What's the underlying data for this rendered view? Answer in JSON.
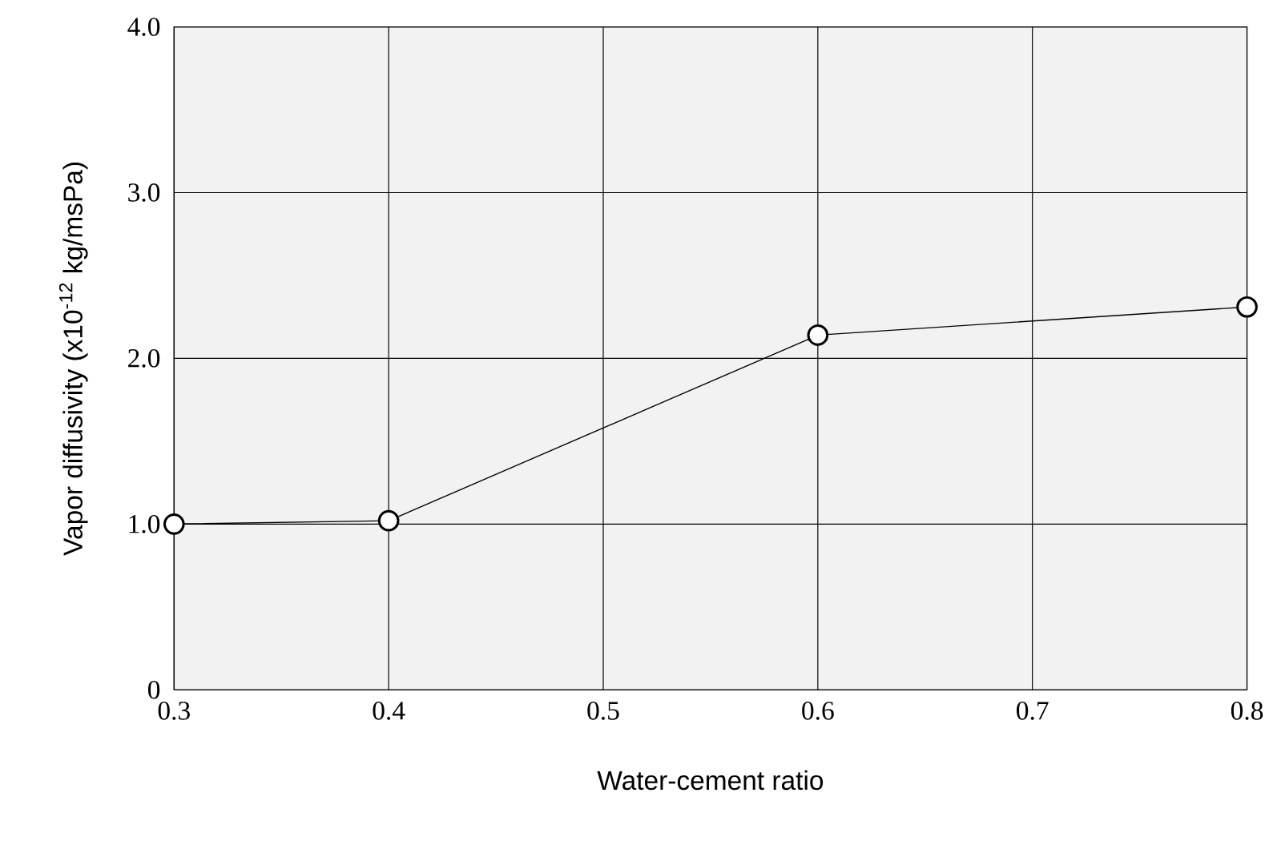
{
  "chart_data": {
    "type": "line",
    "xlabel": "Water-cement ratio",
    "ylabel": "Vapor diffusivity (x10$^{-12}$ kg/msPa)",
    "x": [
      0.3,
      0.4,
      0.6,
      0.8
    ],
    "series": [
      {
        "color": "#000000",
        "values": [
          1.0,
          1.02,
          2.14,
          2.31
        ]
      }
    ],
    "xlim": [
      0.3,
      0.8
    ],
    "xticks": [
      0.3,
      0.4,
      0.5,
      0.6,
      0.7,
      0.8
    ],
    "ylim": [
      0,
      4
    ],
    "yticks": [
      0,
      {
        "value": 1,
        "label": "1.0"
      },
      {
        "value": 2,
        "label": "2.0"
      },
      {
        "value": 3,
        "label": "3.0"
      },
      {
        "value": 4,
        "label": "4.0"
      }
    ],
    "grid": true,
    "marker": "circle",
    "line_style": "solid"
  }
}
